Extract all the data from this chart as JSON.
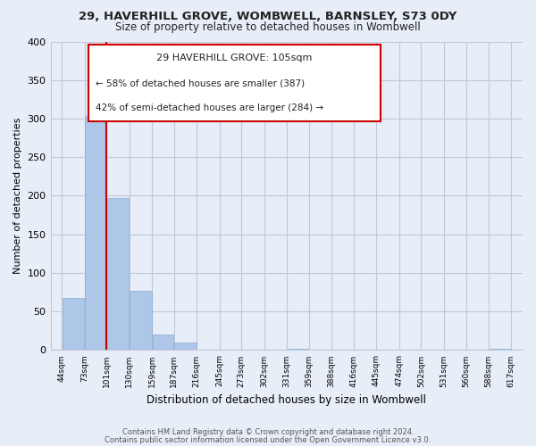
{
  "title1": "29, HAVERHILL GROVE, WOMBWELL, BARNSLEY, S73 0DY",
  "title2": "Size of property relative to detached houses in Wombwell",
  "xlabel": "Distribution of detached houses by size in Wombwell",
  "ylabel": "Number of detached properties",
  "bins": [
    44,
    73,
    101,
    130,
    159,
    187,
    216,
    245,
    273,
    302,
    331,
    359,
    388,
    416,
    445,
    474,
    502,
    531,
    560,
    588,
    617
  ],
  "bin_labels": [
    "44sqm",
    "73sqm",
    "101sqm",
    "130sqm",
    "159sqm",
    "187sqm",
    "216sqm",
    "245sqm",
    "273sqm",
    "302sqm",
    "331sqm",
    "359sqm",
    "388sqm",
    "416sqm",
    "445sqm",
    "474sqm",
    "502sqm",
    "531sqm",
    "560sqm",
    "588sqm",
    "617sqm"
  ],
  "counts": [
    68,
    303,
    197,
    77,
    20,
    10,
    0,
    0,
    0,
    0,
    2,
    0,
    0,
    0,
    0,
    0,
    0,
    0,
    0,
    2
  ],
  "bar_color": "#aec6e8",
  "bar_edge_color": "#8aafd0",
  "property_bin_index": 2,
  "vline_color": "#cc0000",
  "ylim": [
    0,
    400
  ],
  "yticks": [
    0,
    50,
    100,
    150,
    200,
    250,
    300,
    350,
    400
  ],
  "annotation_title": "29 HAVERHILL GROVE: 105sqm",
  "annotation_line1": "← 58% of detached houses are smaller (387)",
  "annotation_line2": "42% of semi-detached houses are larger (284) →",
  "footer1": "Contains HM Land Registry data © Crown copyright and database right 2024.",
  "footer2": "Contains public sector information licensed under the Open Government Licence v3.0.",
  "bg_color": "#e8eef8",
  "plot_bg_color": "#e8eef8",
  "grid_color": "#c0c8d8"
}
